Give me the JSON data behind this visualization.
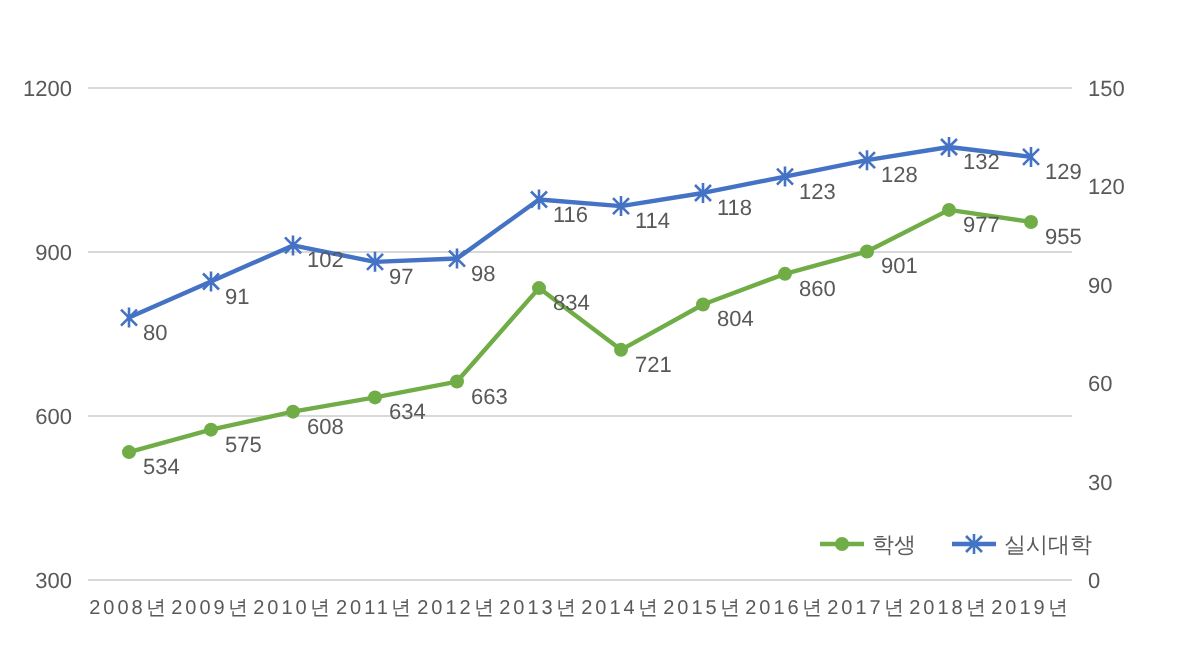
{
  "chart_data": {
    "type": "line",
    "categories": [
      "2008년",
      "2009년",
      "2010년",
      "2011년",
      "2012년",
      "2013년",
      "2014년",
      "2015년",
      "2016년",
      "2017년",
      "2018년",
      "2019년"
    ],
    "series": [
      {
        "name": "학생",
        "color": "#70ad47",
        "marker": "circle",
        "values": [
          534,
          575,
          608,
          634,
          663,
          834,
          721,
          804,
          860,
          901,
          977,
          955
        ]
      },
      {
        "name": "실시대학",
        "color": "#4472c4",
        "marker": "cross",
        "axis": "y2",
        "values": [
          80,
          91,
          102,
          97,
          98,
          116,
          114,
          118,
          123,
          128,
          132,
          129
        ]
      }
    ],
    "ylim": [
      300,
      1200
    ],
    "yticks": [
      300,
      600,
      900,
      1200
    ],
    "y2lim": [
      0,
      150
    ],
    "y2ticks": [
      0,
      30,
      60,
      90,
      120,
      150
    ],
    "grid": "y",
    "legend": "bottom right",
    "data_labels": true
  }
}
